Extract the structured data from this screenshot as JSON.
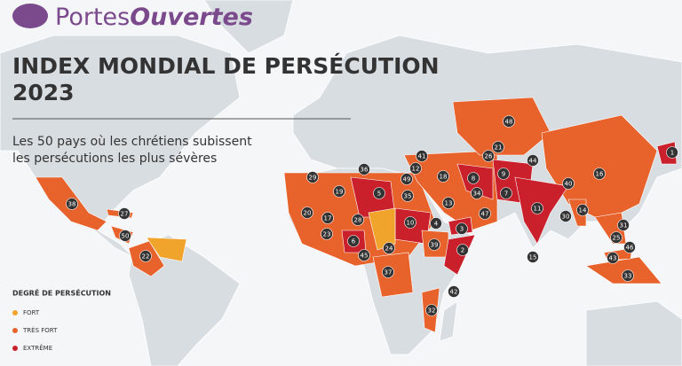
{
  "logo": {
    "brand_1": "Portes",
    "brand_2": "Ouvertes"
  },
  "header": {
    "title": "INDEX MONDIAL DE PERSÉCUTION",
    "year": "2023",
    "subtitle_1": "Les 50 pays où les chrétiens subissent",
    "subtitle_2": "les persécutions les plus sévères"
  },
  "legend": {
    "title": "DEGRÉ DE PERSÉCUTION",
    "items": [
      {
        "label": "FORT",
        "color": "#f0a42c"
      },
      {
        "label": "TRÈS FORT",
        "color": "#e8622c"
      },
      {
        "label": "EXTRÊME",
        "color": "#c9202c"
      }
    ]
  },
  "markers": [
    {
      "label": "1"
    },
    {
      "label": "2"
    },
    {
      "label": "3"
    },
    {
      "label": "4"
    },
    {
      "label": "5"
    },
    {
      "label": "6"
    },
    {
      "label": "7"
    },
    {
      "label": "8"
    },
    {
      "label": "9"
    },
    {
      "label": "10"
    },
    {
      "label": "11"
    },
    {
      "label": "12"
    },
    {
      "label": "13"
    },
    {
      "label": "14"
    },
    {
      "label": "15"
    },
    {
      "label": "16"
    },
    {
      "label": "17"
    },
    {
      "label": "18"
    },
    {
      "label": "19"
    },
    {
      "label": "20"
    },
    {
      "label": "21"
    },
    {
      "label": "22"
    },
    {
      "label": "23"
    },
    {
      "label": "24"
    },
    {
      "label": "25"
    },
    {
      "label": "26"
    },
    {
      "label": "27"
    },
    {
      "label": "28"
    },
    {
      "label": "29"
    },
    {
      "label": "30"
    },
    {
      "label": "31"
    },
    {
      "label": "32"
    },
    {
      "label": "33"
    },
    {
      "label": "34"
    },
    {
      "label": "35"
    },
    {
      "label": "36"
    },
    {
      "label": "37"
    },
    {
      "label": "38"
    },
    {
      "label": "39"
    },
    {
      "label": "40"
    },
    {
      "label": "41"
    },
    {
      "label": "42"
    },
    {
      "label": "43"
    },
    {
      "label": "44"
    },
    {
      "label": "45"
    },
    {
      "label": "46"
    },
    {
      "label": "47"
    },
    {
      "label": "48"
    },
    {
      "label": "49"
    },
    {
      "label": "50"
    }
  ]
}
